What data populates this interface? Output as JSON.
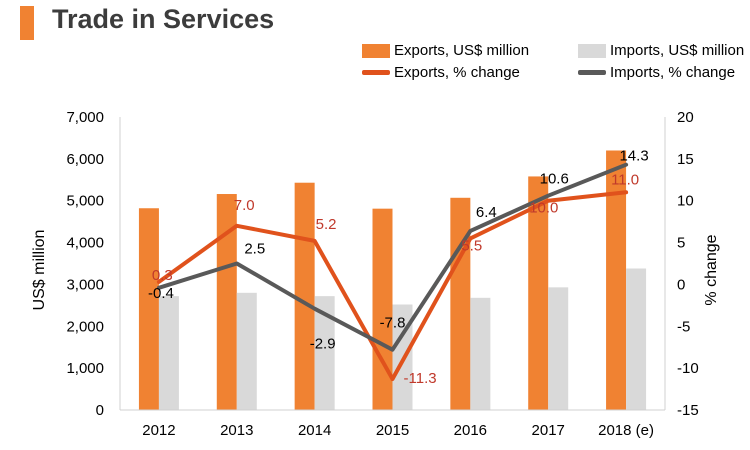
{
  "header": {
    "title": "Trade in Services"
  },
  "legend": {
    "exports_bar": "Exports, US$ million",
    "imports_bar": "Imports, US$ million",
    "exports_line": "Exports, % change",
    "imports_line": "Imports, % change"
  },
  "colors": {
    "accent": "#f08232",
    "exports_bar": "#f08232",
    "imports_bar": "#d9d9d9",
    "exports_line": "#e0521c",
    "imports_line": "#595959",
    "exports_label": "#c0392b"
  },
  "chart_data": {
    "type": "bar",
    "title": "Trade in Services",
    "categories": [
      "2012",
      "2013",
      "2014",
      "2015",
      "2016",
      "2017",
      "2018 (e)"
    ],
    "ylabel": "US$ million",
    "y2label": "% change",
    "ylim": [
      0,
      7000
    ],
    "y2lim": [
      -15,
      20
    ],
    "yticks": [
      "0",
      "1,000",
      "2,000",
      "3,000",
      "4,000",
      "5,000",
      "6,000",
      "7,000"
    ],
    "y2ticks": [
      "-15",
      "-10",
      "-5",
      "0",
      "5",
      "10",
      "15",
      "20"
    ],
    "grid": false,
    "legend_position": "top-right",
    "series": [
      {
        "name": "Exports, US$ million",
        "kind": "bar",
        "axis": "left",
        "values": [
          4820,
          5160,
          5430,
          4810,
          5070,
          5580,
          6200
        ]
      },
      {
        "name": "Imports, US$ million",
        "kind": "bar",
        "axis": "left",
        "values": [
          2720,
          2800,
          2720,
          2520,
          2680,
          2930,
          3380
        ]
      },
      {
        "name": "Exports, % change",
        "kind": "line",
        "axis": "right",
        "values": [
          0.3,
          7.0,
          5.2,
          -11.3,
          5.5,
          10.0,
          11.0
        ],
        "labels": [
          "0.3",
          "7.0",
          "5.2",
          "-11.3",
          "5.5",
          "10.0",
          "11.0"
        ]
      },
      {
        "name": "Imports, % change",
        "kind": "line",
        "axis": "right",
        "values": [
          -0.4,
          2.5,
          -2.9,
          -7.8,
          6.4,
          10.6,
          14.3
        ],
        "labels": [
          "-0.4",
          "2.5",
          "-2.9",
          "-7.8",
          "6.4",
          "10.6",
          "14.3"
        ]
      }
    ]
  }
}
